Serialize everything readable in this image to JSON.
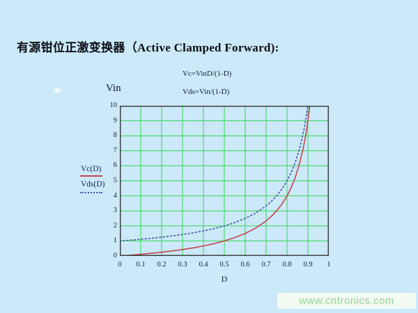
{
  "page": {
    "title": "有源钳位正激变换器（Active Clamped Forward):"
  },
  "formulas": {
    "vc": "Vc=VinD/(1-D)",
    "vds": "Vds=Vin/(1-D)"
  },
  "watermark": {
    "text": "www.cntronics.com"
  },
  "colors": {
    "background": "#cbe9f8",
    "frame": "#3f3f3f",
    "grid": "#35d455",
    "vc_line": "#c4454e",
    "vds_line": "#3d55a8",
    "title_text": "#0c0c14",
    "tick_text": "#16203c",
    "legend_text": "#1a2560",
    "watermark_text": "#98d198"
  },
  "chart_data": {
    "type": "line",
    "title": "",
    "xlabel": "D",
    "ylabel": "Vin",
    "xlim": [
      0,
      1
    ],
    "ylim": [
      0,
      10
    ],
    "grid": true,
    "grid_color": "#35d455",
    "legend_position": "left-outside",
    "xticks": [
      0,
      0.1,
      0.2,
      0.3,
      0.4,
      0.5,
      0.6,
      0.7,
      0.8,
      0.9,
      1
    ],
    "xtick_labels": [
      "0",
      "0.1",
      "0.2",
      "0.3",
      "0.4",
      "0.5",
      "0.6",
      "0.7",
      "0.8",
      "0.9",
      "1"
    ],
    "yticks": [
      0,
      1,
      2,
      3,
      4,
      5,
      6,
      7,
      8,
      9,
      10
    ],
    "ytick_labels": [
      "0",
      "1",
      "2",
      "3",
      "4",
      "5",
      "6",
      "7",
      "8",
      "9",
      "10"
    ],
    "x": [
      0,
      0.05,
      0.1,
      0.15,
      0.2,
      0.25,
      0.3,
      0.35,
      0.4,
      0.45,
      0.5,
      0.55,
      0.6,
      0.65,
      0.7,
      0.725,
      0.75,
      0.775,
      0.8,
      0.82,
      0.84,
      0.86,
      0.88,
      0.89,
      0.9,
      0.905,
      0.912
    ],
    "series": [
      {
        "name": "Vc(D)",
        "formula": "Vc=VinD/(1-D)",
        "style": "solid",
        "color": "#c4454e",
        "values": [
          0,
          0.053,
          0.111,
          0.176,
          0.25,
          0.333,
          0.429,
          0.538,
          0.667,
          0.818,
          1,
          1.222,
          1.5,
          1.857,
          2.333,
          2.636,
          3,
          3.444,
          4,
          4.556,
          5.25,
          6.143,
          7.333,
          8.091,
          9,
          9.526,
          10.364
        ]
      },
      {
        "name": "Vds(D)",
        "formula": "Vds=Vin/(1-D)",
        "style": "dotted",
        "color": "#3d55a8",
        "values": [
          1,
          1.053,
          1.111,
          1.176,
          1.25,
          1.333,
          1.429,
          1.538,
          1.667,
          1.818,
          2,
          2.222,
          2.5,
          2.857,
          3.333,
          3.636,
          4,
          4.444,
          5,
          5.556,
          6.25,
          7.143,
          8.333,
          9.091,
          10,
          10.526,
          11.364
        ]
      }
    ]
  }
}
